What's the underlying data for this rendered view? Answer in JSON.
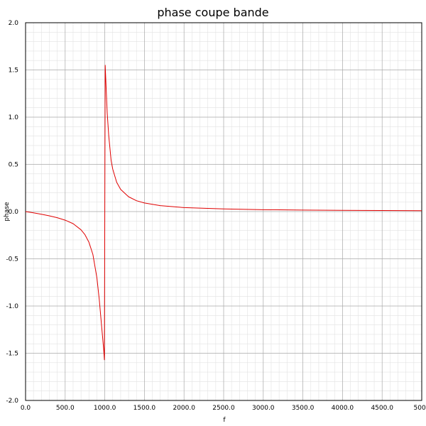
{
  "chart_data": {
    "type": "line",
    "title": "phase coupe bande",
    "xlabel": "f",
    "ylabel": "phase",
    "xlim": [
      0,
      5000
    ],
    "ylim": [
      -2.0,
      2.0
    ],
    "x_ticks": [
      0,
      500,
      1000,
      1500,
      2000,
      2500,
      3000,
      3500,
      4000,
      4500,
      5000
    ],
    "y_ticks": [
      -2.0,
      -1.5,
      -1.0,
      -0.5,
      0.0,
      0.5,
      1.0,
      1.5,
      2.0
    ],
    "x_tick_labels": [
      "0.0",
      "500.0",
      "1000.0",
      "1500.0",
      "2000.0",
      "2500.0",
      "3000.0",
      "3500.0",
      "4000.0",
      "4500.0",
      "5000"
    ],
    "y_tick_labels": [
      "-2.0",
      "-1.5",
      "-1.0",
      "-0.5",
      "0.0",
      "0.5",
      "1.0",
      "1.5",
      "2.0"
    ],
    "grid": true,
    "series": [
      {
        "color": "#e00000",
        "x": [
          0,
          100,
          200,
          300,
          400,
          500,
          600,
          700,
          750,
          800,
          850,
          900,
          930,
          950,
          970,
          985,
          995,
          1000,
          1005,
          1015,
          1030,
          1050,
          1080,
          1100,
          1150,
          1200,
          1300,
          1400,
          1500,
          1700,
          2000,
          2500,
          3000,
          3500,
          4000,
          4500,
          5000
        ],
        "y": [
          0.0,
          -0.013,
          -0.028,
          -0.045,
          -0.065,
          -0.091,
          -0.128,
          -0.193,
          -0.245,
          -0.325,
          -0.455,
          -0.7,
          -0.93,
          -1.12,
          -1.31,
          -1.45,
          -1.57,
          0.0,
          1.55,
          1.35,
          1.05,
          0.8,
          0.54,
          0.45,
          0.31,
          0.235,
          0.157,
          0.115,
          0.091,
          0.063,
          0.042,
          0.028,
          0.02,
          0.016,
          0.013,
          0.011,
          0.0095
        ]
      }
    ]
  }
}
